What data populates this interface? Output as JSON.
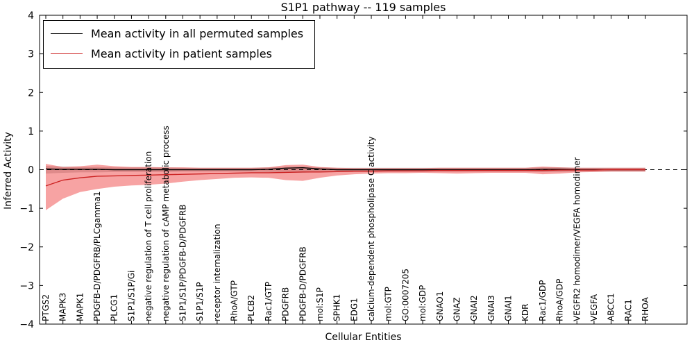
{
  "chart_data": {
    "type": "line",
    "title": "S1P1 pathway -- 119 samples",
    "xlabel": "Cellular Entities",
    "ylabel": "Inferred Activity",
    "ylim": [
      -4,
      4
    ],
    "yticks": [
      -4,
      -3,
      -2,
      -1,
      0,
      1,
      2,
      3,
      4
    ],
    "ytick_labels": [
      "−4",
      "−3",
      "−2",
      "−1",
      "0",
      "1",
      "2",
      "3",
      "4"
    ],
    "grid": false,
    "legend_position": "upper left",
    "zero_line": {
      "style": "dashed",
      "color": "#000000"
    },
    "categories": [
      "PTGS2",
      "MAPK3",
      "MAPK1",
      "PDGFB-D/PDGFRB/PLCgamma1",
      "PLCG1",
      "S1P1/S1P/Gi",
      "negative regulation of T cell proliferation",
      "negative regulation of cAMP metabolic process",
      "S1P1/S1P/PDGFB-D/PDGFRB",
      "S1P1/S1P",
      "receptor internalization",
      "RhoA/GTP",
      "PLCB2",
      "Rac1/GTP",
      "PDGFRB",
      "PDGFB-D/PDGFRB",
      "mol:S1P",
      "SPHK1",
      "EDG1",
      "calcium-dependent phospholipase C activity",
      "mol:GTP",
      "GO:0007205",
      "mol:GDP",
      "GNAO1",
      "GNAZ",
      "GNAI2",
      "GNAI3",
      "GNAI1",
      "KDR",
      "Rac1/GDP",
      "RhoA/GDP",
      "VEGFR2 homodimer/VEGFA homodimer",
      "VEGFA",
      "ABCC1",
      "RAC1",
      "RHOA"
    ],
    "series": [
      {
        "name": "Mean activity in all permuted samples",
        "color": "#000000",
        "band_color": "#9a9a9a",
        "band_opacity": 0.45,
        "values": [
          0.02,
          0.01,
          0.01,
          0.01,
          0,
          0,
          0,
          0,
          0,
          0,
          0,
          0,
          0,
          0.01,
          0.04,
          0.05,
          0.02,
          0,
          0,
          0,
          0,
          0,
          0,
          0,
          0,
          0,
          0,
          0,
          0,
          0.01,
          0.01,
          0,
          0,
          0,
          0,
          0
        ],
        "band_upper": [
          0.1,
          0.08,
          0.07,
          0.07,
          0.06,
          0.06,
          0.06,
          0.06,
          0.05,
          0.05,
          0.05,
          0.05,
          0.05,
          0.06,
          0.08,
          0.08,
          0.06,
          0.05,
          0.05,
          0.05,
          0.05,
          0.05,
          0.05,
          0.05,
          0.05,
          0.05,
          0.05,
          0.05,
          0.05,
          0.06,
          0.06,
          0.05,
          0.05,
          0.05,
          0.05,
          0.05
        ],
        "band_lower": [
          -0.1,
          -0.08,
          -0.07,
          -0.07,
          -0.06,
          -0.06,
          -0.06,
          -0.06,
          -0.05,
          -0.05,
          -0.05,
          -0.05,
          -0.05,
          -0.06,
          -0.08,
          -0.08,
          -0.06,
          -0.05,
          -0.05,
          -0.05,
          -0.05,
          -0.05,
          -0.05,
          -0.05,
          -0.05,
          -0.05,
          -0.05,
          -0.05,
          -0.05,
          -0.06,
          -0.06,
          -0.05,
          -0.05,
          -0.05,
          -0.05,
          -0.05
        ]
      },
      {
        "name": "Mean activity in patient samples",
        "color": "#cc2222",
        "band_color": "#ee3333",
        "band_opacity": 0.45,
        "values": [
          -0.42,
          -0.27,
          -0.21,
          -0.17,
          -0.16,
          -0.15,
          -0.14,
          -0.13,
          -0.12,
          -0.11,
          -0.1,
          -0.09,
          -0.08,
          -0.08,
          -0.07,
          -0.06,
          -0.06,
          -0.05,
          -0.04,
          -0.04,
          -0.03,
          -0.03,
          -0.03,
          -0.02,
          -0.02,
          -0.02,
          -0.02,
          -0.02,
          -0.02,
          -0.02,
          -0.01,
          -0.01,
          -0.01,
          0,
          0,
          0
        ],
        "band_upper": [
          0.15,
          0.07,
          0.09,
          0.13,
          0.09,
          0.07,
          0.07,
          0.06,
          0.06,
          0.05,
          0.05,
          0.05,
          0.05,
          0.06,
          0.12,
          0.13,
          0.07,
          0.05,
          0.04,
          0.04,
          0.04,
          0.04,
          0.04,
          0.05,
          0.05,
          0.05,
          0.05,
          0.05,
          0.05,
          0.08,
          0.06,
          0.05,
          0.05,
          0.05,
          0.05,
          0.05
        ],
        "band_lower": [
          -1.05,
          -0.75,
          -0.58,
          -0.5,
          -0.44,
          -0.41,
          -0.39,
          -0.36,
          -0.31,
          -0.27,
          -0.24,
          -0.21,
          -0.2,
          -0.21,
          -0.27,
          -0.29,
          -0.21,
          -0.15,
          -0.12,
          -0.1,
          -0.09,
          -0.09,
          -0.08,
          -0.09,
          -0.1,
          -0.09,
          -0.08,
          -0.08,
          -0.08,
          -0.12,
          -0.1,
          -0.07,
          -0.06,
          -0.05,
          -0.05,
          -0.05
        ]
      }
    ]
  }
}
